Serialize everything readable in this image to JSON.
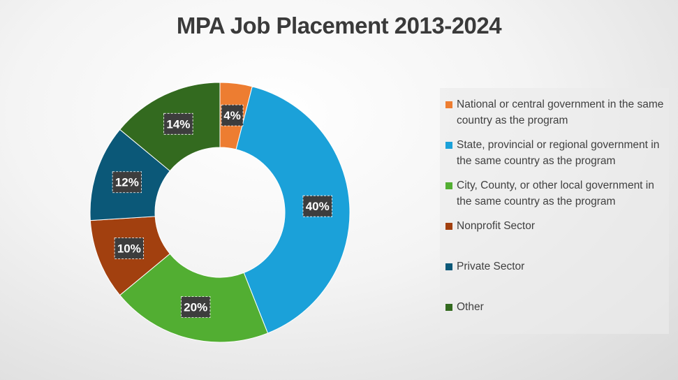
{
  "chart_data": {
    "type": "donut",
    "title": "MPA Job Placement 2013-2024",
    "legend_position": "right",
    "series": [
      {
        "name": "National or central government in the same country as the program",
        "value": 4,
        "label": "4%",
        "color": "#ED7D31"
      },
      {
        "name": "State, provincial or regional government in the same country as the program",
        "value": 40,
        "label": "40%",
        "color": "#1BA1D9"
      },
      {
        "name": "City, County, or other local government in the same country as the program",
        "value": 20,
        "label": "20%",
        "color": "#52AE32"
      },
      {
        "name": "Nonprofit Sector",
        "value": 10,
        "label": "10%",
        "color": "#A2400F"
      },
      {
        "name": "Private Sector",
        "value": 12,
        "label": "12%",
        "color": "#0B5878"
      },
      {
        "name": "Other",
        "value": 14,
        "label": "14%",
        "color": "#336A1F"
      }
    ]
  }
}
